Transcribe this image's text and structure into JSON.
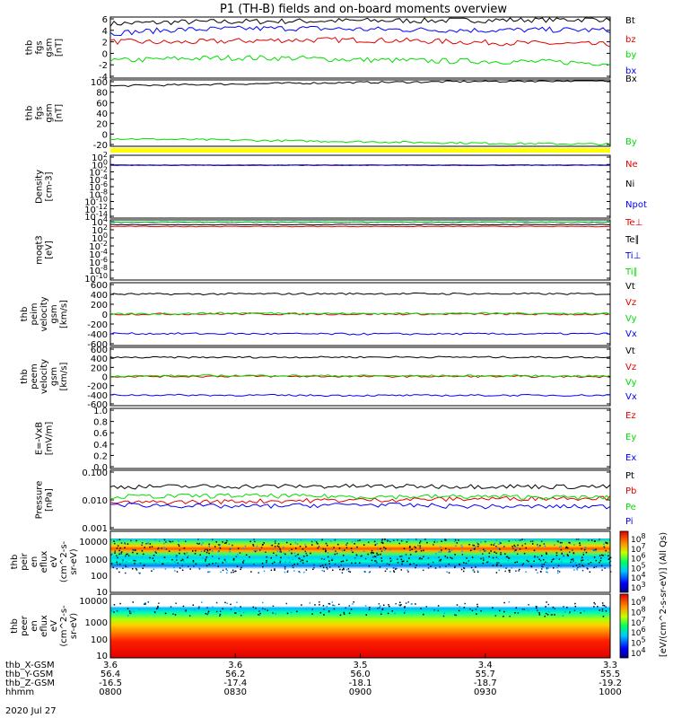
{
  "title": "P1 (TH-B) fields and on-board moments overview",
  "date_label": "2020 Jul 27",
  "time_axis": {
    "row_labels": [
      "thb_X-GSM",
      "thb_Y-GSM",
      "thb_Z-GSM",
      "hhmm"
    ],
    "columns": [
      [
        "3.6",
        "56.4",
        "-16.5",
        "0800"
      ],
      [
        "3.6",
        "56.2",
        "-17.4",
        "0830"
      ],
      [
        "3.5",
        "56.0",
        "-18.1",
        "0900"
      ],
      [
        "3.4",
        "55.7",
        "-18.7",
        "0930"
      ],
      [
        "3.3",
        "55.5",
        "-19.2",
        "1000"
      ]
    ]
  },
  "colors": {
    "black": "#000000",
    "red": "#e00000",
    "green": "#00dd00",
    "blue": "#0000ff"
  },
  "chart_data": [
    {
      "type": "line",
      "ylabel": [
        "thb",
        "fgs",
        "gsm",
        "[nT]"
      ],
      "ylim": [
        -6,
        6
      ],
      "yticks": [
        "6",
        "4",
        "2",
        "0",
        "-2",
        "-4"
      ],
      "x": [
        "0800",
        "0815",
        "0830",
        "0845",
        "0900",
        "0915",
        "0930",
        "0945",
        "1000"
      ],
      "series": [
        {
          "name": "Bt",
          "color": "#000000",
          "values": [
            4.7,
            5.0,
            5.1,
            5.2,
            5.3,
            5.3,
            5.4,
            5.5,
            5.6
          ]
        },
        {
          "name": "bz",
          "color": "#e00000",
          "values": [
            1.2,
            1.0,
            1.3,
            1.5,
            1.5,
            1.3,
            1.0,
            0.8,
            0.6
          ]
        },
        {
          "name": "by",
          "color": "#00dd00",
          "values": [
            -2.6,
            -2.2,
            -2.0,
            -2.1,
            -2.4,
            -2.6,
            -2.7,
            -2.8,
            -3.1
          ]
        },
        {
          "name": "bx",
          "color": "#0000ff",
          "values": [
            2.8,
            3.5,
            3.7,
            3.8,
            3.6,
            3.5,
            3.4,
            3.5,
            3.4
          ]
        }
      ]
    },
    {
      "type": "line",
      "ylabel": [
        "thb",
        "fgs",
        "gsm",
        "[nT]"
      ],
      "ylim": [
        -30,
        100
      ],
      "yticks": [
        "100",
        "80",
        "60",
        "40",
        "20",
        "0",
        "-20"
      ],
      "x": [
        "0800",
        "0830",
        "0900",
        "0930",
        "1000"
      ],
      "series": [
        {
          "name": "Bx",
          "color": "#000000",
          "values": [
            88,
            92,
            95,
            97,
            99
          ]
        },
        {
          "name": "By",
          "color": "#00dd00",
          "values": [
            -15,
            -18,
            -21,
            -24,
            -26
          ]
        }
      ]
    },
    {
      "type": "line",
      "ylabel": [
        "Density",
        "[cm-3]"
      ],
      "yscale": "log",
      "yticks": [
        "10^2",
        "10^0",
        "10^-2",
        "10^-4",
        "10^-6",
        "10^-8",
        "10^-10",
        "10^-12",
        "10^-14"
      ],
      "series": [
        {
          "name": "Ne",
          "color": "#e00000",
          "values": [
            0.3,
            0.3,
            0.3,
            0.3,
            0.3
          ]
        },
        {
          "name": "Ni",
          "color": "#000000",
          "values": [
            0.3,
            0.3,
            0.3,
            0.3,
            0.3
          ]
        },
        {
          "name": "Npot",
          "color": "#0000ff",
          "values": [
            0.3,
            0.3,
            0.3,
            0.3,
            0.3
          ]
        }
      ]
    },
    {
      "type": "line",
      "ylabel": [
        "moqt3",
        "[eV]"
      ],
      "yscale": "log",
      "yticks": [
        "10^4",
        "10^2",
        "10^0",
        "10^-2",
        "10^-4",
        "10^-6",
        "10^-8",
        "10^-10"
      ],
      "series": [
        {
          "name": "Te⊥",
          "color": "#e00000",
          "values": [
            300,
            300,
            300,
            300,
            300
          ]
        },
        {
          "name": "Te∥",
          "color": "#000000",
          "values": [
            800,
            800,
            800,
            800,
            800
          ]
        },
        {
          "name": "Ti⊥",
          "color": "#0000ff",
          "values": [
            3000,
            3000,
            3000,
            3000,
            3000
          ]
        },
        {
          "name": "Ti∥",
          "color": "#00dd00",
          "values": [
            3000,
            3000,
            3000,
            3000,
            3000
          ]
        }
      ]
    },
    {
      "type": "line",
      "ylabel": [
        "thb",
        "peim",
        "velocity",
        "gsm",
        "[km/s]"
      ],
      "ylim": [
        -600,
        600
      ],
      "yticks": [
        "600",
        "400",
        "200",
        "0",
        "-200",
        "-400",
        "-600"
      ],
      "series": [
        {
          "name": "Vt",
          "color": "#000000",
          "values": [
            380,
            385,
            390,
            388,
            385
          ]
        },
        {
          "name": "Vz",
          "color": "#e00000",
          "values": [
            0,
            5,
            0,
            2,
            -5
          ]
        },
        {
          "name": "Vy",
          "color": "#00dd00",
          "values": [
            0,
            20,
            10,
            15,
            10
          ]
        },
        {
          "name": "Vx",
          "color": "#0000ff",
          "values": [
            -370,
            -375,
            -380,
            -378,
            -375
          ]
        }
      ]
    },
    {
      "type": "line",
      "ylabel": [
        "thb",
        "peem",
        "velocity",
        "gsm",
        "[km/s]"
      ],
      "ylim": [
        -600,
        600
      ],
      "yticks": [
        "600",
        "400",
        "200",
        "0",
        "-200",
        "-400",
        "-600"
      ],
      "series": [
        {
          "name": "Vt",
          "color": "#000000",
          "values": [
            390,
            395,
            400,
            398,
            395
          ]
        },
        {
          "name": "Vz",
          "color": "#e00000",
          "values": [
            0,
            5,
            0,
            2,
            -5
          ]
        },
        {
          "name": "Vy",
          "color": "#00dd00",
          "values": [
            10,
            20,
            15,
            15,
            10
          ]
        },
        {
          "name": "Vx",
          "color": "#0000ff",
          "values": [
            -380,
            -385,
            -390,
            -388,
            -385
          ]
        }
      ]
    },
    {
      "type": "line",
      "ylabel": [
        "E=-VxB",
        "[mV/m]"
      ],
      "ylim": [
        0,
        1
      ],
      "yticks": [
        "1.0",
        "0.8",
        "0.6",
        "0.4",
        "0.2",
        "0.0"
      ],
      "series": [
        {
          "name": "Ez",
          "color": "#e00000",
          "values": []
        },
        {
          "name": "Ey",
          "color": "#00dd00",
          "values": []
        },
        {
          "name": "Ex",
          "color": "#0000ff",
          "values": []
        }
      ]
    },
    {
      "type": "line",
      "ylabel": [
        "Pressure",
        "[nPa]"
      ],
      "yscale": "log",
      "ylim": [
        0.001,
        0.1
      ],
      "yticks": [
        "0.100",
        "0.010",
        "0.001"
      ],
      "series": [
        {
          "name": "Pt",
          "color": "#000000",
          "values": [
            0.028,
            0.029,
            0.029,
            0.029,
            0.028
          ]
        },
        {
          "name": "Pb",
          "color": "#e00000",
          "values": [
            0.008,
            0.009,
            0.01,
            0.011,
            0.012
          ]
        },
        {
          "name": "Pe",
          "color": "#00dd00",
          "values": [
            0.013,
            0.014,
            0.013,
            0.013,
            0.012
          ]
        },
        {
          "name": "Pi",
          "color": "#0000ff",
          "values": [
            0.007,
            0.006,
            0.007,
            0.006,
            0.006
          ]
        }
      ]
    },
    {
      "type": "heatmap",
      "ylabel": [
        "thb",
        "peir",
        "en",
        "eflux",
        "eV",
        "(cm^2-s-",
        "sr-eV)"
      ],
      "yscale": "log",
      "yticks": [
        "10000",
        "1000",
        "100",
        "10"
      ],
      "colorbar_ticks": [
        "10^8",
        "10^7",
        "10^6",
        "10^5",
        "10^4",
        "10^3"
      ],
      "colorbar_label": "[eV/(cm^2-s-sr-eV)] (All Qs)"
    },
    {
      "type": "heatmap",
      "ylabel": [
        "thb",
        "peer",
        "en",
        "eflux",
        "eV",
        "(cm^2-s-",
        "sr-eV)"
      ],
      "yscale": "log",
      "yticks": [
        "10000",
        "1000",
        "100",
        "10"
      ],
      "colorbar_ticks": [
        "10^9",
        "10^8",
        "10^7",
        "10^6",
        "10^5",
        "10^4"
      ],
      "colorbar_label": "[eV/(cm^2-s-sr-eV)] (All Qs)"
    }
  ]
}
